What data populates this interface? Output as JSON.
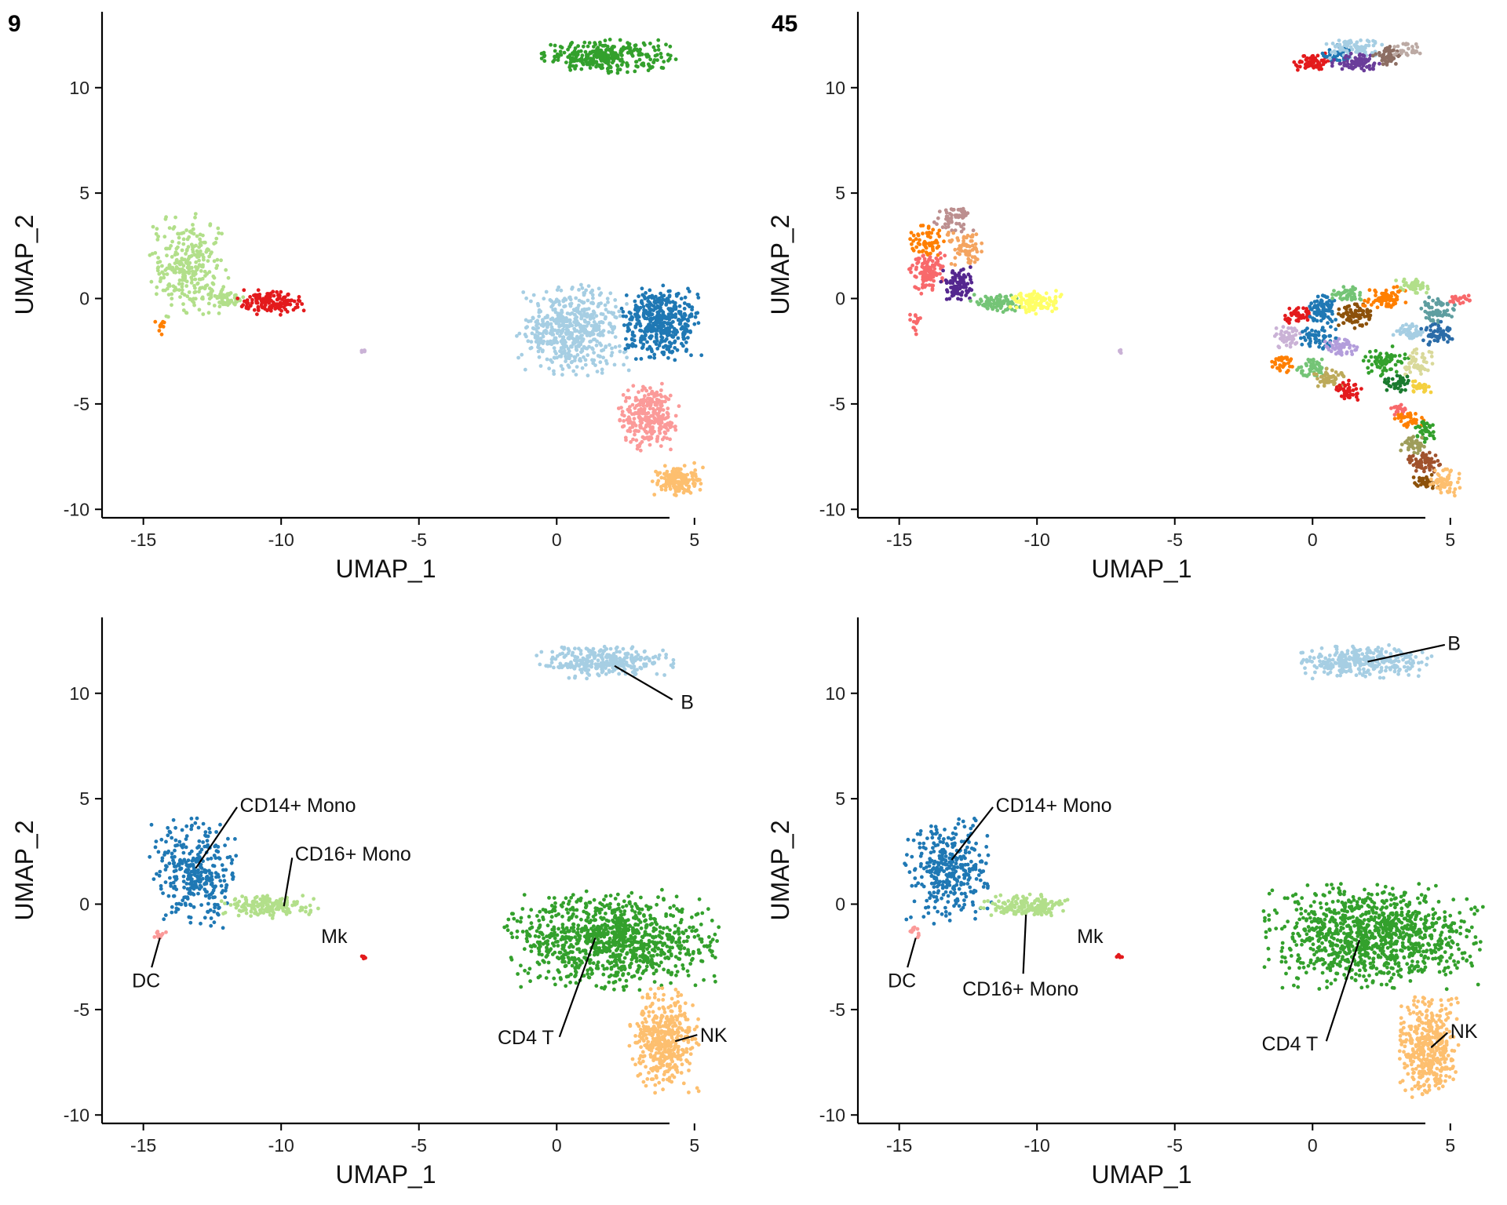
{
  "chart_data": [
    {
      "type": "scatter",
      "panel_label": "9",
      "xlabel": "UMAP_1",
      "ylabel": "UMAP_2",
      "xlim": [
        -16.5,
        6.8
      ],
      "ylim": [
        -10.4,
        13.6
      ],
      "xticks": [
        -15,
        -10,
        -5,
        0,
        5
      ],
      "yticks": [
        -10,
        -5,
        0,
        5,
        10
      ],
      "grid": false,
      "legend": "none",
      "labels": [],
      "clusters": [
        {
          "color": "#33a02c",
          "n": 300,
          "shape": "ellipse",
          "cx": 1.8,
          "cy": 11.5,
          "rx": 2.2,
          "ry": 0.7
        },
        {
          "color": "#b2df8a",
          "n": 280,
          "shape": "ellipse",
          "cx": -13.4,
          "cy": 1.6,
          "rx": 1.3,
          "ry": 2.2
        },
        {
          "color": "#b2df8a",
          "n": 60,
          "shape": "ellipse",
          "cx": -12.0,
          "cy": 0.0,
          "rx": 0.6,
          "ry": 0.4
        },
        {
          "color": "#e31a1c",
          "n": 140,
          "shape": "ellipse",
          "cx": -10.3,
          "cy": -0.2,
          "rx": 1.2,
          "ry": 0.55
        },
        {
          "color": "#ff7f00",
          "n": 10,
          "shape": "ellipse",
          "cx": -14.4,
          "cy": -1.4,
          "rx": 0.2,
          "ry": 0.35
        },
        {
          "color": "#cab2d6",
          "n": 6,
          "shape": "ellipse",
          "cx": -7.0,
          "cy": -2.5,
          "rx": 0.1,
          "ry": 0.1
        },
        {
          "color": "#a6cee3",
          "n": 520,
          "shape": "ellipse",
          "cx": 0.6,
          "cy": -1.5,
          "rx": 1.8,
          "ry": 1.9
        },
        {
          "color": "#1f78b4",
          "n": 440,
          "shape": "ellipse",
          "cx": 3.8,
          "cy": -1.1,
          "rx": 1.3,
          "ry": 1.6
        },
        {
          "color": "#fb9a99",
          "n": 280,
          "shape": "ellipse",
          "cx": 3.3,
          "cy": -5.6,
          "rx": 1.0,
          "ry": 1.4
        },
        {
          "color": "#fdbf6f",
          "n": 160,
          "shape": "ellipse",
          "cx": 4.4,
          "cy": -8.6,
          "rx": 0.85,
          "ry": 0.7
        }
      ]
    },
    {
      "type": "scatter",
      "panel_label": "45",
      "xlabel": "UMAP_1",
      "ylabel": "UMAP_2",
      "xlim": [
        -16.5,
        6.8
      ],
      "ylim": [
        -10.4,
        13.6
      ],
      "xticks": [
        -15,
        -10,
        -5,
        0,
        5
      ],
      "yticks": [
        -10,
        -5,
        0,
        5,
        10
      ],
      "grid": false,
      "legend": "none",
      "labels": [],
      "clusters": [
        {
          "color": "#e31a1c",
          "n": 60,
          "shape": "ellipse",
          "cx": 0.0,
          "cy": 11.2,
          "rx": 0.6,
          "ry": 0.4
        },
        {
          "color": "#1f78b4",
          "n": 40,
          "shape": "ellipse",
          "cx": 0.9,
          "cy": 11.6,
          "rx": 0.5,
          "ry": 0.4
        },
        {
          "color": "#a6cee3",
          "n": 80,
          "shape": "ellipse",
          "cx": 1.5,
          "cy": 11.9,
          "rx": 0.9,
          "ry": 0.45
        },
        {
          "color": "#6a3d9a",
          "n": 80,
          "shape": "ellipse",
          "cx": 1.6,
          "cy": 11.2,
          "rx": 0.8,
          "ry": 0.4
        },
        {
          "color": "#8d6e63",
          "n": 45,
          "shape": "ellipse",
          "cx": 2.7,
          "cy": 11.5,
          "rx": 0.5,
          "ry": 0.45
        },
        {
          "color": "#bcaaa4",
          "n": 30,
          "shape": "ellipse",
          "cx": 3.5,
          "cy": 11.8,
          "rx": 0.5,
          "ry": 0.35
        },
        {
          "color": "#bc8f8f",
          "n": 55,
          "shape": "ellipse",
          "cx": -13.0,
          "cy": 3.8,
          "rx": 0.7,
          "ry": 0.6
        },
        {
          "color": "#ff7f00",
          "n": 60,
          "shape": "ellipse",
          "cx": -14.0,
          "cy": 2.8,
          "rx": 0.6,
          "ry": 0.7
        },
        {
          "color": "#f4a460",
          "n": 70,
          "shape": "ellipse",
          "cx": -12.7,
          "cy": 2.4,
          "rx": 0.7,
          "ry": 0.8
        },
        {
          "color": "#f8696b",
          "n": 110,
          "shape": "ellipse",
          "cx": -14.0,
          "cy": 1.2,
          "rx": 0.6,
          "ry": 0.9
        },
        {
          "color": "#f8696b",
          "n": 15,
          "shape": "ellipse",
          "cx": -14.4,
          "cy": -1.2,
          "rx": 0.25,
          "ry": 0.6
        },
        {
          "color": "#54278f",
          "n": 90,
          "shape": "ellipse",
          "cx": -12.9,
          "cy": 0.7,
          "rx": 0.55,
          "ry": 0.7
        },
        {
          "color": "#74c476",
          "n": 80,
          "shape": "ellipse",
          "cx": -11.5,
          "cy": -0.2,
          "rx": 0.8,
          "ry": 0.4
        },
        {
          "color": "#ffff66",
          "n": 120,
          "shape": "ellipse",
          "cx": -10.0,
          "cy": -0.2,
          "rx": 0.9,
          "ry": 0.5
        },
        {
          "color": "#cab2d6",
          "n": 6,
          "shape": "ellipse",
          "cx": -7.0,
          "cy": -2.5,
          "rx": 0.1,
          "ry": 0.1
        },
        {
          "color": "#e31a1c",
          "n": 40,
          "shape": "ellipse",
          "cx": -0.5,
          "cy": -0.8,
          "rx": 0.5,
          "ry": 0.4
        },
        {
          "color": "#1f78b4",
          "n": 80,
          "shape": "ellipse",
          "cx": 0.4,
          "cy": -0.6,
          "rx": 0.6,
          "ry": 0.7
        },
        {
          "color": "#74c476",
          "n": 50,
          "shape": "ellipse",
          "cx": 1.3,
          "cy": 0.2,
          "rx": 0.6,
          "ry": 0.35
        },
        {
          "color": "#8c510a",
          "n": 80,
          "shape": "ellipse",
          "cx": 1.6,
          "cy": -0.8,
          "rx": 0.6,
          "ry": 0.55
        },
        {
          "color": "#ff7f00",
          "n": 70,
          "shape": "ellipse",
          "cx": 2.6,
          "cy": 0.0,
          "rx": 0.7,
          "ry": 0.5
        },
        {
          "color": "#b2df8a",
          "n": 40,
          "shape": "ellipse",
          "cx": 3.7,
          "cy": 0.6,
          "rx": 0.6,
          "ry": 0.35
        },
        {
          "color": "#5f9ea0",
          "n": 60,
          "shape": "ellipse",
          "cx": 4.5,
          "cy": -0.6,
          "rx": 0.6,
          "ry": 0.6
        },
        {
          "color": "#f8696b",
          "n": 20,
          "shape": "ellipse",
          "cx": 5.3,
          "cy": 0.0,
          "rx": 0.4,
          "ry": 0.25
        },
        {
          "color": "#2b6ca8",
          "n": 60,
          "shape": "ellipse",
          "cx": 4.5,
          "cy": -1.7,
          "rx": 0.5,
          "ry": 0.55
        },
        {
          "color": "#cab2d6",
          "n": 50,
          "shape": "ellipse",
          "cx": -0.9,
          "cy": -1.8,
          "rx": 0.5,
          "ry": 0.5
        },
        {
          "color": "#1f78b4",
          "n": 60,
          "shape": "ellipse",
          "cx": 0.2,
          "cy": -1.9,
          "rx": 0.6,
          "ry": 0.5
        },
        {
          "color": "#a6cee3",
          "n": 50,
          "shape": "ellipse",
          "cx": 3.5,
          "cy": -1.6,
          "rx": 0.6,
          "ry": 0.4
        },
        {
          "color": "#b39ddb",
          "n": 50,
          "shape": "ellipse",
          "cx": 1.0,
          "cy": -2.3,
          "rx": 0.6,
          "ry": 0.45
        },
        {
          "color": "#ff7f00",
          "n": 30,
          "shape": "ellipse",
          "cx": -1.1,
          "cy": -3.1,
          "rx": 0.35,
          "ry": 0.4
        },
        {
          "color": "#74c476",
          "n": 50,
          "shape": "ellipse",
          "cx": 0.0,
          "cy": -3.3,
          "rx": 0.5,
          "ry": 0.45
        },
        {
          "color": "#bcaa5a",
          "n": 50,
          "shape": "ellipse",
          "cx": 0.6,
          "cy": -3.7,
          "rx": 0.55,
          "ry": 0.45
        },
        {
          "color": "#e31a1c",
          "n": 40,
          "shape": "ellipse",
          "cx": 1.3,
          "cy": -4.3,
          "rx": 0.5,
          "ry": 0.45
        },
        {
          "color": "#33a02c",
          "n": 60,
          "shape": "ellipse",
          "cx": 2.6,
          "cy": -3.0,
          "rx": 0.8,
          "ry": 0.6
        },
        {
          "color": "#d9d99a",
          "n": 50,
          "shape": "ellipse",
          "cx": 3.8,
          "cy": -3.0,
          "rx": 0.5,
          "ry": 0.6
        },
        {
          "color": "#1a7a2e",
          "n": 40,
          "shape": "ellipse",
          "cx": 3.1,
          "cy": -4.0,
          "rx": 0.5,
          "ry": 0.4
        },
        {
          "color": "#f4d03f",
          "n": 30,
          "shape": "ellipse",
          "cx": 3.9,
          "cy": -4.2,
          "rx": 0.35,
          "ry": 0.35
        },
        {
          "color": "#f8696b",
          "n": 20,
          "shape": "ellipse",
          "cx": 3.2,
          "cy": -5.3,
          "rx": 0.4,
          "ry": 0.35
        },
        {
          "color": "#ff7f00",
          "n": 40,
          "shape": "ellipse",
          "cx": 3.5,
          "cy": -5.8,
          "rx": 0.5,
          "ry": 0.4
        },
        {
          "color": "#33a02c",
          "n": 40,
          "shape": "ellipse",
          "cx": 4.1,
          "cy": -6.3,
          "rx": 0.35,
          "ry": 0.5
        },
        {
          "color": "#9e9d5a",
          "n": 40,
          "shape": "ellipse",
          "cx": 3.6,
          "cy": -6.9,
          "rx": 0.45,
          "ry": 0.4
        },
        {
          "color": "#a0522d",
          "n": 60,
          "shape": "ellipse",
          "cx": 4.0,
          "cy": -7.8,
          "rx": 0.55,
          "ry": 0.5
        },
        {
          "color": "#8c510a",
          "n": 40,
          "shape": "ellipse",
          "cx": 4.1,
          "cy": -8.7,
          "rx": 0.5,
          "ry": 0.35
        },
        {
          "color": "#fdbf6f",
          "n": 60,
          "shape": "ellipse",
          "cx": 4.8,
          "cy": -8.7,
          "rx": 0.5,
          "ry": 0.6
        }
      ]
    },
    {
      "type": "scatter",
      "panel_label": "",
      "xlabel": "UMAP_1",
      "ylabel": "UMAP_2",
      "xlim": [
        -16.5,
        6.8
      ],
      "ylim": [
        -10.4,
        13.6
      ],
      "xticks": [
        -15,
        -10,
        -5,
        0,
        5
      ],
      "yticks": [
        -10,
        -5,
        0,
        5,
        10
      ],
      "grid": false,
      "legend": "none",
      "labels": [
        {
          "text": "B",
          "x": 4.5,
          "y": 9.6,
          "anchor": "start",
          "lx1": 2.1,
          "ly1": 11.3,
          "lx2": 4.2,
          "ly2": 9.7
        },
        {
          "text": "CD14+ Mono",
          "x": -11.5,
          "y": 4.7,
          "anchor": "start",
          "lx1": -13.1,
          "ly1": 1.7,
          "lx2": -11.6,
          "ly2": 4.6
        },
        {
          "text": "CD16+ Mono",
          "x": -9.5,
          "y": 2.4,
          "anchor": "start",
          "lx1": -9.9,
          "ly1": -0.1,
          "lx2": -9.6,
          "ly2": 2.2
        },
        {
          "text": "Mk",
          "x": -7.6,
          "y": -1.5,
          "anchor": "end",
          "lx1": null,
          "ly1": null,
          "lx2": null,
          "ly2": null
        },
        {
          "text": "DC",
          "x": -14.9,
          "y": -3.6,
          "anchor": "middle",
          "lx1": -14.4,
          "ly1": -1.6,
          "lx2": -14.7,
          "ly2": -3.0
        },
        {
          "text": "CD4 T",
          "x": -0.1,
          "y": -6.3,
          "anchor": "end",
          "lx1": 1.4,
          "ly1": -1.6,
          "lx2": 0.1,
          "ly2": -6.3
        },
        {
          "text": "NK",
          "x": 5.2,
          "y": -6.2,
          "anchor": "start",
          "lx1": 4.3,
          "ly1": -6.5,
          "lx2": 5.1,
          "ly2": -6.2
        }
      ],
      "clusters": [
        {
          "color": "#a6cee3",
          "n": 300,
          "shape": "ellipse",
          "cx": 1.8,
          "cy": 11.5,
          "rx": 2.2,
          "ry": 0.7
        },
        {
          "color": "#1f78b4",
          "n": 330,
          "shape": "ellipse",
          "cx": -13.2,
          "cy": 1.5,
          "rx": 1.4,
          "ry": 2.3
        },
        {
          "color": "#b2df8a",
          "n": 170,
          "shape": "ellipse",
          "cx": -10.5,
          "cy": -0.1,
          "rx": 1.5,
          "ry": 0.5
        },
        {
          "color": "#e31a1c",
          "n": 6,
          "shape": "ellipse",
          "cx": -7.0,
          "cy": -2.5,
          "rx": 0.1,
          "ry": 0.1
        },
        {
          "color": "#fb9a99",
          "n": 10,
          "shape": "ellipse",
          "cx": -14.4,
          "cy": -1.4,
          "rx": 0.2,
          "ry": 0.35
        },
        {
          "color": "#33a02c",
          "n": 1000,
          "shape": "ellipse",
          "cx": 2.0,
          "cy": -1.7,
          "rx": 3.4,
          "ry": 2.1
        },
        {
          "color": "#fdbf6f",
          "n": 420,
          "shape": "ellipse",
          "cx": 3.9,
          "cy": -6.5,
          "rx": 1.1,
          "ry": 2.2
        }
      ]
    },
    {
      "type": "scatter",
      "panel_label": "",
      "xlabel": "UMAP_1",
      "ylabel": "UMAP_2",
      "xlim": [
        -16.5,
        6.8
      ],
      "ylim": [
        -10.4,
        13.6
      ],
      "xticks": [
        -15,
        -10,
        -5,
        0,
        5
      ],
      "yticks": [
        -10,
        -5,
        0,
        5,
        10
      ],
      "grid": false,
      "legend": "none",
      "labels": [
        {
          "text": "B",
          "x": 4.9,
          "y": 12.4,
          "anchor": "start",
          "lx1": 2.0,
          "ly1": 11.5,
          "lx2": 4.8,
          "ly2": 12.3
        },
        {
          "text": "CD14+ Mono",
          "x": -11.5,
          "y": 4.7,
          "anchor": "start",
          "lx1": -13.1,
          "ly1": 2.1,
          "lx2": -11.6,
          "ly2": 4.6
        },
        {
          "text": "CD16+ Mono",
          "x": -10.6,
          "y": -4.0,
          "anchor": "middle",
          "lx1": -10.4,
          "ly1": -0.5,
          "lx2": -10.5,
          "ly2": -3.3
        },
        {
          "text": "Mk",
          "x": -7.6,
          "y": -1.5,
          "anchor": "end",
          "lx1": null,
          "ly1": null,
          "lx2": null,
          "ly2": null
        },
        {
          "text": "DC",
          "x": -14.9,
          "y": -3.6,
          "anchor": "middle",
          "lx1": -14.4,
          "ly1": -1.6,
          "lx2": -14.7,
          "ly2": -3.0
        },
        {
          "text": "CD4 T",
          "x": 0.2,
          "y": -6.6,
          "anchor": "end",
          "lx1": 1.7,
          "ly1": -1.7,
          "lx2": 0.5,
          "ly2": -6.5
        },
        {
          "text": "NK",
          "x": 5.0,
          "y": -6.0,
          "anchor": "start",
          "lx1": 4.3,
          "ly1": -6.8,
          "lx2": 4.9,
          "ly2": -6.1
        }
      ],
      "clusters": [
        {
          "color": "#a6cee3",
          "n": 300,
          "shape": "ellipse",
          "cx": 1.8,
          "cy": 11.5,
          "rx": 2.2,
          "ry": 0.7
        },
        {
          "color": "#1f78b4",
          "n": 330,
          "shape": "ellipse",
          "cx": -13.2,
          "cy": 1.5,
          "rx": 1.4,
          "ry": 2.3
        },
        {
          "color": "#b2df8a",
          "n": 170,
          "shape": "ellipse",
          "cx": -10.5,
          "cy": -0.1,
          "rx": 1.5,
          "ry": 0.5
        },
        {
          "color": "#e31a1c",
          "n": 6,
          "shape": "ellipse",
          "cx": -7.0,
          "cy": -2.5,
          "rx": 0.1,
          "ry": 0.1
        },
        {
          "color": "#fb9a99",
          "n": 10,
          "shape": "ellipse",
          "cx": -14.4,
          "cy": -1.4,
          "rx": 0.2,
          "ry": 0.35
        },
        {
          "color": "#33a02c",
          "n": 1050,
          "shape": "ellipse",
          "cx": 2.2,
          "cy": -1.5,
          "rx": 3.5,
          "ry": 2.2
        },
        {
          "color": "#fdbf6f",
          "n": 400,
          "shape": "ellipse",
          "cx": 4.2,
          "cy": -6.8,
          "rx": 1.0,
          "ry": 2.1
        }
      ]
    }
  ]
}
